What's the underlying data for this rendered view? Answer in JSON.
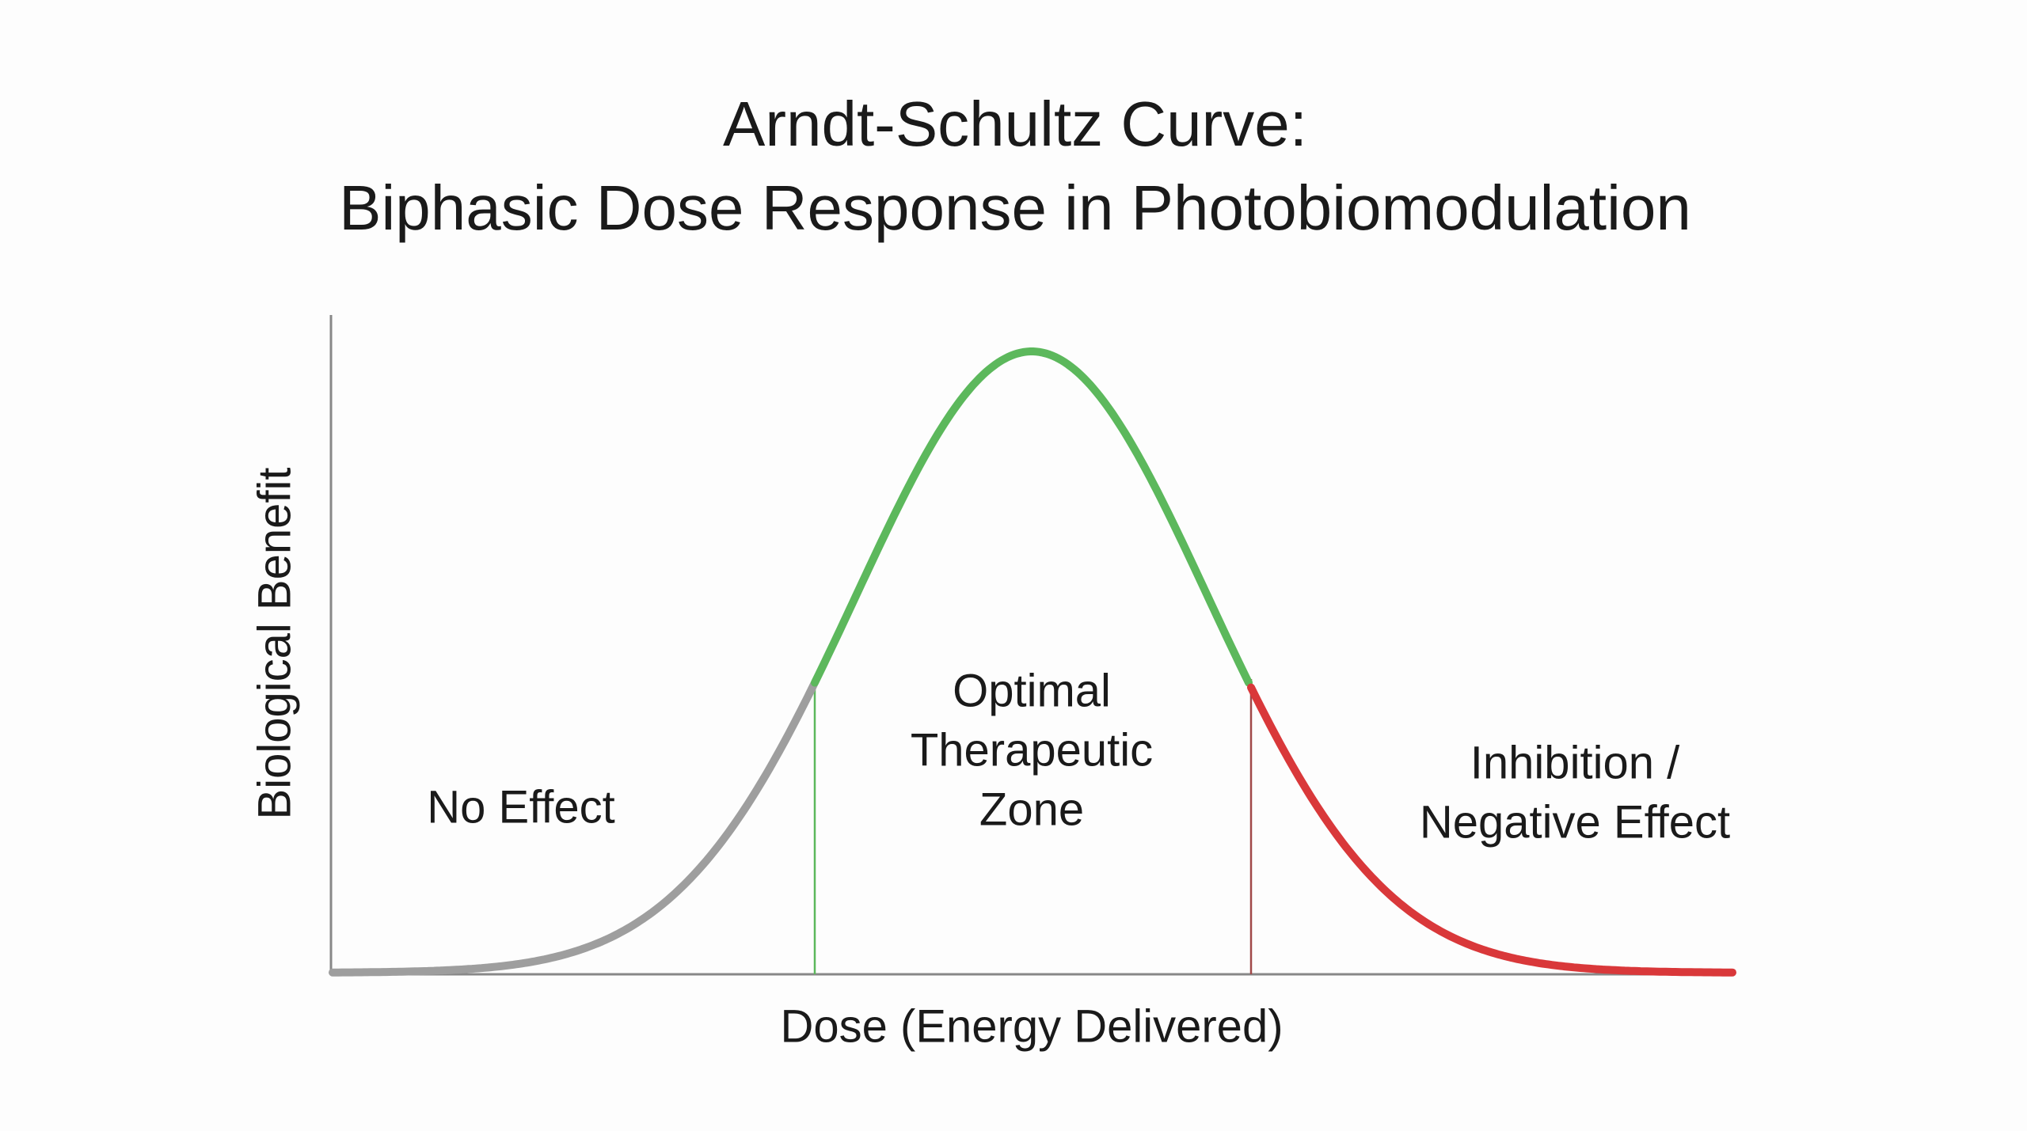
{
  "title": [
    "Arndt-Schultz Curve:",
    "Biphasic Dose Response in Photobiomodulation"
  ],
  "axes": {
    "x_label": "Dose (Energy Delivered)",
    "y_label": "Biological Benefit"
  },
  "zones": [
    {
      "lines": [
        "No Effect"
      ]
    },
    {
      "lines": [
        "Optimal",
        "Therapeutic",
        "Zone"
      ]
    },
    {
      "lines": [
        "Inhibition /",
        "Negative Effect"
      ]
    }
  ]
}
